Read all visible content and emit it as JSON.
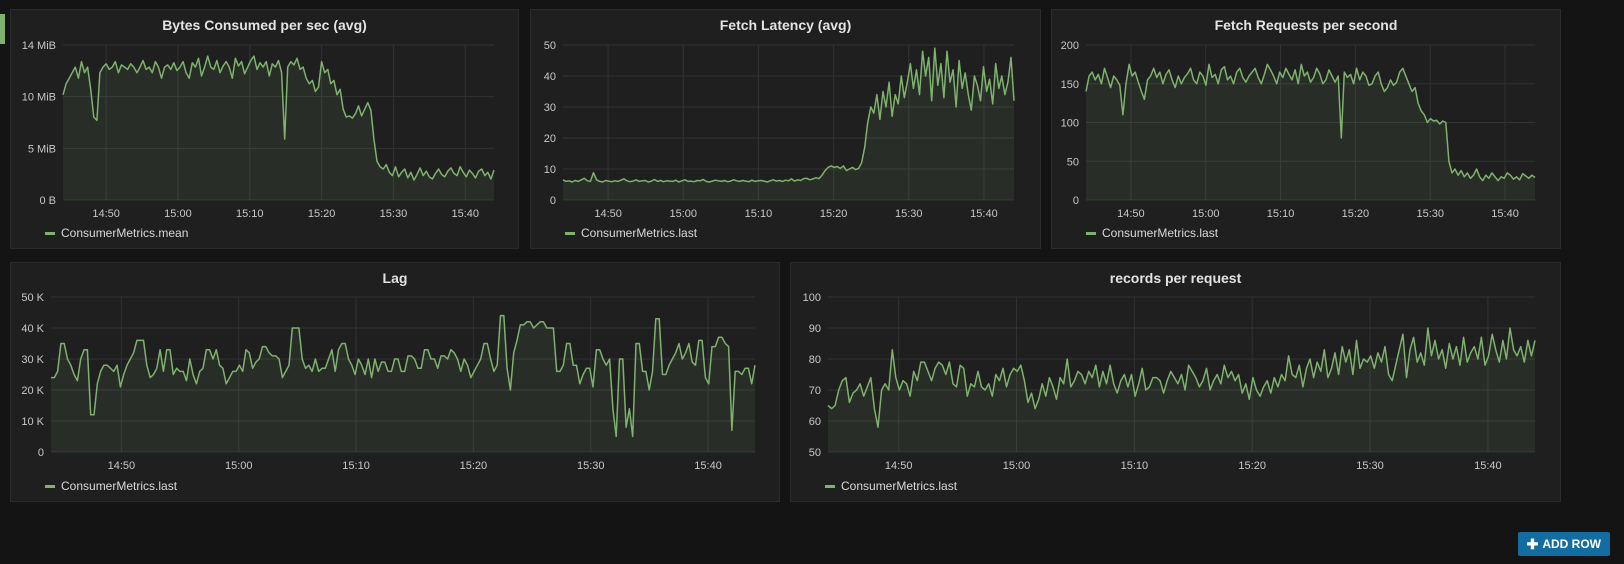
{
  "colors": {
    "series": "#7eb26d",
    "accent": "#7eb26d",
    "button": "#146da1"
  },
  "add_row_label": "ADD ROW",
  "add_row_icon": "plus-icon",
  "panels": [
    {
      "title": "Bytes Consumed per sec (avg)",
      "legend": "ConsumerMetrics.mean",
      "chart_data": {
        "type": "area",
        "xlabels": [
          "14:50",
          "15:00",
          "15:10",
          "15:20",
          "15:30",
          "15:40"
        ],
        "ylabels": [
          "0 B",
          "5 MiB",
          "10 MiB",
          "14 MiB"
        ],
        "ylim": [
          0,
          14
        ],
        "x_range": [
          "14:44",
          "15:44"
        ],
        "series": [
          {
            "name": "ConsumerMetrics.mean",
            "values": [
              9.5,
              10.5,
              11,
              11.5,
              12,
              11,
              12.5,
              11.5,
              12,
              10,
              7.5,
              7.2,
              11.5,
              12,
              12.3,
              11.8,
              12,
              12.5,
              11.5,
              12.2,
              12,
              11.8,
              12.3,
              12,
              11.5,
              12,
              12.6,
              11.8,
              12,
              11.5,
              12.5,
              12,
              11,
              12,
              12.2,
              11.8,
              12.4,
              11.7,
              12,
              12.5,
              11.5,
              11,
              12.4,
              12,
              12.8,
              11.2,
              12,
              13,
              12,
              11.8,
              12.6,
              11.5,
              12.1,
              12.5,
              12,
              11,
              12.8,
              12.1,
              12.5,
              11.4,
              12,
              12.6,
              13,
              11.8,
              12.4,
              12,
              12.5,
              11.2,
              12.3,
              12,
              12.6,
              11.5,
              5.5,
              12,
              12.5,
              12.2,
              12.8,
              11.8,
              12,
              11,
              10.5,
              10.8,
              9.8,
              10.2,
              12.5,
              11.5,
              11.8,
              10.5,
              10.8,
              9.5,
              10,
              8.2,
              7.5,
              7.6,
              7.4,
              7.8,
              8.5,
              7.6,
              8.2,
              8.8,
              8.1,
              5.5,
              3.5,
              3,
              2.8,
              3.2,
              2.5,
              2.2,
              3,
              2.1,
              2.5,
              2.8,
              2,
              2.5,
              1.8,
              2.3,
              2.9,
              2.2,
              2.6,
              2.1,
              1.9,
              2.4,
              2.8,
              2.3,
              2.1,
              2.6,
              2.9,
              2.4,
              2.2,
              3,
              2.5,
              2.1,
              2.7,
              2.4,
              2,
              2.6,
              2.8,
              2.2,
              2.5,
              1.9,
              2.7
            ]
          }
        ]
      }
    },
    {
      "title": "Fetch Latency (avg)",
      "legend": "ConsumerMetrics.last",
      "chart_data": {
        "type": "area",
        "xlabels": [
          "14:50",
          "15:00",
          "15:10",
          "15:20",
          "15:30",
          "15:40"
        ],
        "ylabels": [
          "0",
          "10",
          "20",
          "30",
          "40",
          "50"
        ],
        "ylim": [
          0,
          50
        ],
        "x_range": [
          "14:44",
          "15:44"
        ],
        "series": [
          {
            "name": "ConsumerMetrics.last",
            "values": [
              6.5,
              6,
              6.2,
              5.8,
              6.3,
              6,
              6.5,
              7,
              6.2,
              6,
              8.8,
              6.5,
              6,
              5.8,
              6.3,
              6.1,
              5.9,
              6.2,
              6,
              6.4,
              6.8,
              6.2,
              5.9,
              6.1,
              6.5,
              6,
              6.2,
              6.3,
              5.8,
              6.1,
              6.6,
              6,
              6.3,
              5.9,
              6.2,
              6.1,
              6,
              6.4,
              5.8,
              6.2,
              6.5,
              6,
              6.1,
              5.9,
              6.3,
              6.2,
              6.6,
              6,
              5.8,
              6.1,
              6.4,
              6.2,
              6,
              6.3,
              5.9,
              6.1,
              6.5,
              6.2,
              6,
              6.3,
              6.1,
              5.9,
              6.4,
              6,
              6.2,
              6.3,
              6.1,
              5.8,
              6.2,
              6.5,
              6.1,
              6.3,
              6,
              6.4,
              6.2,
              6.8,
              6.1,
              6.5,
              6.3,
              6.9,
              7,
              6.5,
              6.8,
              7.2,
              6.9,
              8,
              9.5,
              10.5,
              11,
              10.5,
              10.8,
              10.2,
              11,
              9.5,
              10,
              10.5,
              9.8,
              10.2,
              12,
              17,
              25,
              30,
              28,
              34,
              26,
              35,
              30,
              38,
              27,
              34,
              31,
              40,
              33,
              38,
              44,
              36,
              42,
              34,
              48,
              40,
              46,
              32,
              49,
              37,
              44,
              33,
              48,
              38,
              42,
              30,
              45,
              36,
              41,
              34,
              29,
              40,
              37,
              32,
              43,
              35,
              39,
              31,
              44,
              36,
              40,
              34,
              38,
              46,
              32
            ]
          }
        ]
      }
    },
    {
      "title": "Fetch Requests per second",
      "legend": "ConsumerMetrics.last",
      "chart_data": {
        "type": "area",
        "xlabels": [
          "14:50",
          "15:00",
          "15:10",
          "15:20",
          "15:30",
          "15:40"
        ],
        "ylabels": [
          "0",
          "50",
          "100",
          "150",
          "200"
        ],
        "ylim": [
          0,
          200
        ],
        "x_range": [
          "14:44",
          "15:44"
        ],
        "series": [
          {
            "name": "ConsumerMetrics.last",
            "values": [
              140,
              160,
              165,
              155,
              162,
              150,
              170,
              158,
              145,
              160,
              155,
              148,
              110,
              150,
              175,
              160,
              165,
              152,
              140,
              130,
              155,
              160,
              170,
              158,
              165,
              150,
              162,
              168,
              155,
              145,
              160,
              150,
              158,
              163,
              170,
              155,
              150,
              165,
              160,
              148,
              175,
              158,
              162,
              150,
              168,
              172,
              155,
              160,
              150,
              165,
              170,
              158,
              152,
              160,
              165,
              170,
              158,
              150,
              162,
              175,
              168,
              160,
              150,
              165,
              158,
              170,
              162,
              155,
              168,
              150,
              175,
              160,
              165,
              152,
              158,
              170,
              163,
              150,
              155,
              168,
              160,
              152,
              160,
              80,
              165,
              158,
              162,
              150,
              170,
              155,
              165,
              160,
              148,
              150,
              160,
              165,
              150,
              140,
              145,
              155,
              148,
              152,
              165,
              170,
              160,
              150,
              140,
              145,
              125,
              115,
              110,
              100,
              105,
              102,
              103,
              98,
              102,
              100,
              50,
              35,
              40,
              32,
              38,
              30,
              35,
              28,
              32,
              40,
              30,
              25,
              32,
              28,
              35,
              30,
              25,
              30,
              28,
              35,
              32,
              27,
              30,
              26,
              34,
              31,
              28,
              32,
              29
            ]
          }
        ]
      }
    },
    {
      "title": "Lag",
      "legend": "ConsumerMetrics.last",
      "chart_data": {
        "type": "area",
        "xlabels": [
          "14:50",
          "15:00",
          "15:10",
          "15:20",
          "15:30",
          "15:40"
        ],
        "ylabels": [
          "0",
          "10 K",
          "20 K",
          "30 K",
          "40 K",
          "50 K"
        ],
        "ylim": [
          0,
          50
        ],
        "x_range": [
          "14:44",
          "15:44"
        ],
        "series": [
          {
            "name": "ConsumerMetrics.last",
            "values": [
              24,
              24,
              26,
              35,
              35,
              30,
              28,
              25,
              23,
              30,
              33,
              33,
              12,
              12,
              22,
              26,
              28,
              28,
              27,
              26,
              28,
              21,
              25,
              28,
              30,
              32,
              36,
              36,
              36,
              28,
              24,
              25,
              27,
              33,
              26,
              33,
              33,
              25,
              27,
              26,
              26,
              23,
              30,
              25,
              22,
              26,
              27,
              33,
              33,
              30,
              33,
              28,
              27,
              22,
              24,
              26,
              26,
              28,
              26,
              33,
              32,
              27,
              29,
              30,
              34,
              34,
              32,
              31,
              31,
              30,
              24,
              26,
              28,
              40,
              40,
              40,
              30,
              27,
              28,
              26,
              30,
              26,
              27,
              27,
              30,
              33,
              26,
              33,
              35,
              35,
              30,
              28,
              25,
              30,
              28,
              25,
              30,
              24,
              30,
              26,
              29,
              29,
              26,
              26,
              30,
              30,
              26,
              26,
              31,
              31,
              30,
              27,
              27,
              33,
              33,
              30,
              30,
              27,
              31,
              31,
              30,
              33,
              32,
              30,
              26,
              30,
              28,
              24,
              26,
              28,
              30,
              35,
              35,
              30,
              26,
              28,
              44,
              44,
              27,
              20,
              32,
              36,
              41,
              41,
              42,
              42,
              40,
              41,
              42,
              42,
              40,
              40,
              40,
              26,
              26,
              28,
              35,
              35,
              28,
              28,
              22,
              25,
              27,
              27,
              21,
              33,
              33,
              30,
              28,
              30,
              14,
              5,
              30,
              30,
              8,
              14,
              5,
              35,
              35,
              26,
              26,
              20,
              26,
              43,
              43,
              25,
              25,
              28,
              30,
              32,
              35,
              30,
              32,
              35,
              29,
              28,
              36,
              36,
              24,
              22,
              34,
              34,
              37,
              37,
              35,
              34,
              7,
              26,
              26,
              25,
              27,
              27,
              22,
              28
            ]
          }
        ]
      }
    },
    {
      "title": "records per request",
      "legend": "ConsumerMetrics.last",
      "chart_data": {
        "type": "area",
        "xlabels": [
          "14:50",
          "15:00",
          "15:10",
          "15:20",
          "15:30",
          "15:40"
        ],
        "ylabels": [
          "50",
          "60",
          "70",
          "80",
          "90",
          "100"
        ],
        "ylim": [
          50,
          100
        ],
        "x_range": [
          "14:44",
          "15:44"
        ],
        "series": [
          {
            "name": "ConsumerMetrics.last",
            "values": [
              65,
              64,
              65,
              70,
              73,
              74,
              66,
              69,
              70,
              72,
              68,
              71,
              74,
              64,
              58,
              70,
              72,
              70,
              83,
              74,
              70,
              73,
              72,
              68,
              76,
              73,
              79,
              79,
              76,
              73,
              77,
              79,
              78,
              75,
              79,
              72,
              71,
              78,
              77,
              68,
              72,
              71,
              76,
              71,
              70,
              72,
              68,
              75,
              73,
              77,
              71,
              75,
              77,
              76,
              78,
              73,
              66,
              69,
              64,
              67,
              72,
              68,
              74,
              71,
              67,
              74,
              72,
              80,
              71,
              73,
              76,
              75,
              72,
              76,
              74,
              78,
              71,
              76,
              72,
              78,
              72,
              69,
              73,
              75,
              71,
              75,
              68,
              72,
              77,
              70,
              71,
              74,
              74,
              73,
              69,
              73,
              76,
              74,
              72,
              75,
              70,
              78,
              76,
              74,
              71,
              73,
              77,
              70,
              73,
              75,
              72,
              78,
              74,
              76,
              73,
              75,
              69,
              72,
              67,
              74,
              70,
              68,
              71,
              73,
              69,
              74,
              71,
              75,
              73,
              81,
              75,
              74,
              78,
              71,
              77,
              80,
              74,
              79,
              76,
              83,
              74,
              77,
              82,
              75,
              84,
              79,
              83,
              75,
              86,
              77,
              80,
              79,
              81,
              77,
              82,
              79,
              84,
              75,
              73,
              78,
              83,
              88,
              74,
              83,
              87,
              79,
              82,
              78,
              90,
              81,
              86,
              80,
              83,
              77,
              85,
              80,
              84,
              78,
              87,
              79,
              82,
              84,
              80,
              87,
              78,
              81,
              88,
              83,
              79,
              86,
              80,
              90,
              83,
              81,
              84,
              79,
              86,
              81,
              86
            ]
          }
        ]
      }
    }
  ]
}
